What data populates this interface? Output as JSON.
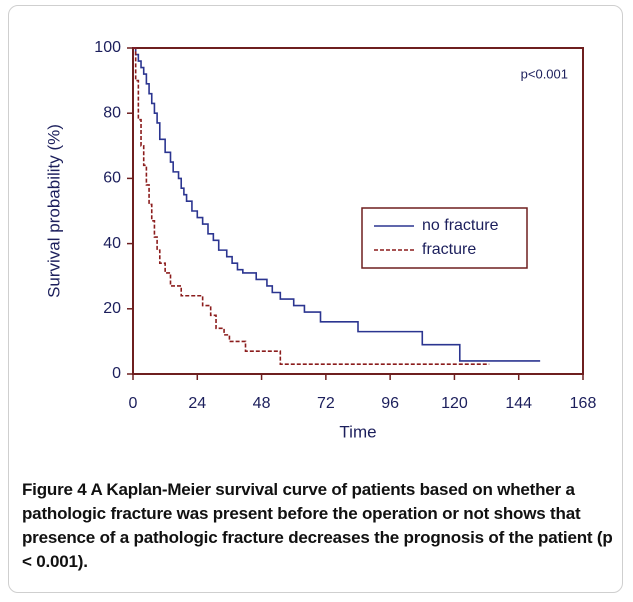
{
  "chart_data": {
    "type": "step",
    "ylabel": "Survival probability (%)",
    "xlabel": "Time",
    "annotation": "p<0.001",
    "xlim": [
      0,
      168
    ],
    "xticks": [
      0,
      24,
      48,
      72,
      96,
      120,
      144,
      168
    ],
    "ylim": [
      0,
      100
    ],
    "yticks": [
      0,
      20,
      40,
      60,
      80,
      100
    ],
    "legend": "center-right",
    "series": [
      {
        "name": "no fracture",
        "color": "#2b3590",
        "dash": "solid",
        "x": [
          0,
          1,
          2,
          3,
          4,
          5,
          6,
          7,
          8,
          9,
          10,
          12,
          14,
          15,
          17,
          18,
          19,
          20,
          22,
          24,
          26,
          28,
          30,
          32,
          35,
          37,
          39,
          41,
          46,
          50,
          52,
          55,
          60,
          64,
          70,
          84,
          108,
          122,
          152
        ],
        "values": [
          100,
          98,
          96,
          94,
          92,
          89,
          86,
          83,
          80,
          77,
          72,
          68,
          65,
          62,
          60,
          57,
          55,
          53,
          50,
          48,
          46,
          43,
          41,
          38,
          36,
          34,
          32,
          31,
          29,
          27,
          25,
          23,
          21,
          19,
          16,
          13,
          9,
          4,
          4
        ]
      },
      {
        "name": "fracture",
        "color": "#8b1c1c",
        "dash": "dashed",
        "x": [
          0,
          1,
          2,
          3,
          4,
          5,
          6,
          7,
          8,
          9,
          10,
          12,
          14,
          18,
          26,
          29,
          31,
          34,
          36,
          42,
          55,
          133
        ],
        "values": [
          100,
          90,
          78,
          70,
          64,
          58,
          52,
          47,
          42,
          38,
          34,
          31,
          27,
          24,
          21,
          18,
          14,
          12,
          10,
          7,
          3,
          3
        ]
      }
    ]
  },
  "caption": {
    "label": "Figure 4",
    "text": "A Kaplan-Meier survival curve of patients based on whether a pathologic fracture was present before the operation or not shows that presence of a pathologic fracture decreases the prognosis of the patient (p < 0.001)."
  }
}
